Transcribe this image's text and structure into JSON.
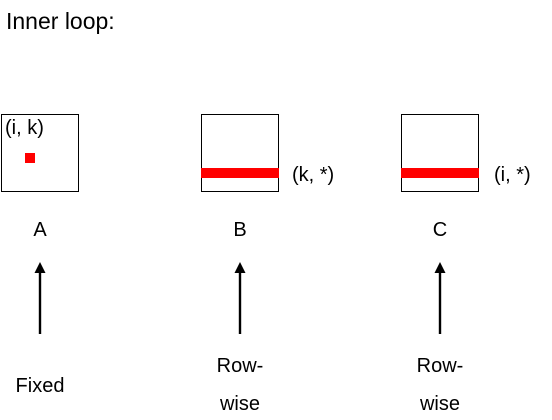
{
  "title": "Inner loop:",
  "matrices": [
    {
      "letter": "A",
      "inner_label": "(i, k)",
      "access": "Fixed",
      "highlight": "element"
    },
    {
      "letter": "B",
      "side_label": "(k, *)",
      "access_line1": "Row-",
      "access_line2": "wise",
      "highlight": "row"
    },
    {
      "letter": "C",
      "side_label": "(i, *)",
      "access_line1": "Row-",
      "access_line2": "wise",
      "highlight": "row"
    }
  ],
  "colors": {
    "highlight": "#ff0000",
    "stroke": "#000000"
  },
  "icons": {
    "arrow": "up-arrow-icon"
  }
}
